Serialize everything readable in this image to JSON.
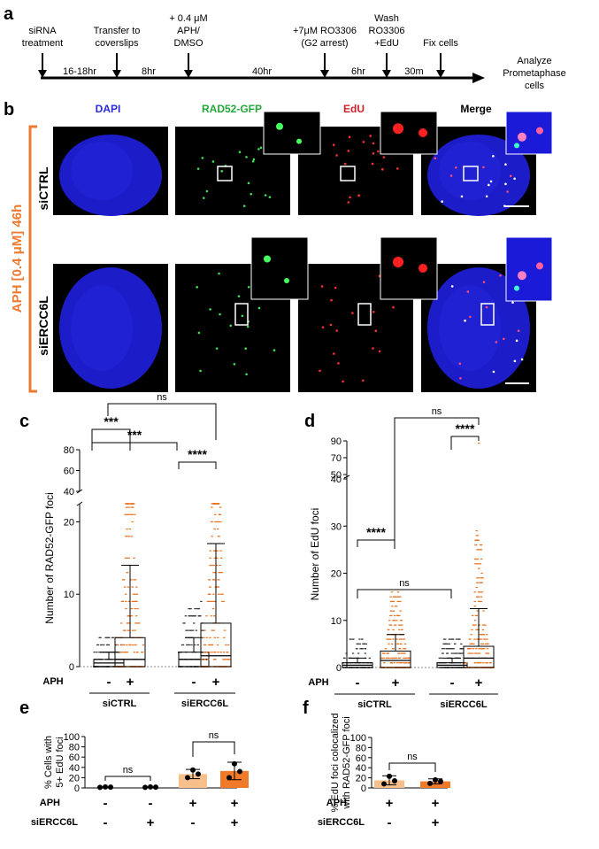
{
  "panel_labels": {
    "a": "a",
    "b": "b",
    "c": "c",
    "d": "d",
    "e": "e",
    "f": "f"
  },
  "timeline": {
    "events": [
      {
        "id": "siRNA",
        "lines": [
          "siRNA",
          "treatment"
        ]
      },
      {
        "id": "transfer",
        "lines": [
          "Transfer to",
          "coverslips"
        ]
      },
      {
        "id": "aph",
        "lines": [
          "+ 0.4 μM",
          "APH/",
          "DMSO"
        ]
      },
      {
        "id": "ro",
        "lines": [
          "+7μM RO3306",
          "(G2 arrest)"
        ]
      },
      {
        "id": "wash",
        "lines": [
          "Wash",
          "RO3306",
          "+EdU"
        ]
      },
      {
        "id": "fix",
        "lines": [
          "Fix cells"
        ]
      },
      {
        "id": "analyze",
        "lines": [
          "Analyze",
          "Prometaphase",
          "cells"
        ]
      }
    ],
    "intervals": [
      "16-18hr",
      "8hr",
      "40hr",
      "6hr",
      "30m"
    ]
  },
  "microscopy": {
    "channels": [
      {
        "name": "DAPI",
        "color": "#2a2ad8"
      },
      {
        "name": "RAD52-GFP",
        "color": "#22a83a"
      },
      {
        "name": "EdU",
        "color": "#d21e2b"
      },
      {
        "name": "Merge",
        "color": "#000000"
      }
    ],
    "side_label": "APH [0.4 μM] 46h",
    "side_color": "#ec7a30",
    "rows": [
      "siCTRL",
      "siERCC6L"
    ]
  },
  "chart_data": [
    {
      "panel": "c",
      "type": "scatter",
      "ylabel": "Number of RAD52-GFP foci",
      "y_ticks_lower": [
        0,
        10,
        20
      ],
      "y_ticks_upper": [
        40,
        60,
        80
      ],
      "groups": [
        {
          "aph": "-",
          "median": 0.5,
          "q3": 1,
          "whisker": 2
        },
        {
          "aph": "+",
          "median": 1,
          "q3": 4,
          "whisker": 14
        },
        {
          "aph": "-",
          "median": 1,
          "q3": 2,
          "whisker": 4
        },
        {
          "aph": "+",
          "median": 1.5,
          "q3": 6,
          "whisker": 17
        }
      ],
      "x_group_labels": [
        "siCTRL",
        "siERCC6L"
      ],
      "row_label": "APH",
      "significance": [
        "***",
        "***",
        "****",
        "ns"
      ]
    },
    {
      "panel": "d",
      "type": "scatter",
      "ylabel": "Number of EdU foci",
      "y_ticks_lower": [
        0,
        10,
        20,
        30,
        40
      ],
      "y_ticks_upper": [
        50,
        70,
        90
      ],
      "groups": [
        {
          "aph": "-",
          "median": 0.5,
          "q3": 1,
          "whisker": 2
        },
        {
          "aph": "+",
          "median": 1.5,
          "q3": 3.5,
          "whisker": 7
        },
        {
          "aph": "-",
          "median": 0.5,
          "q3": 1,
          "whisker": 2
        },
        {
          "aph": "+",
          "median": 2,
          "q3": 4.5,
          "whisker": 12.5
        }
      ],
      "x_group_labels": [
        "siCTRL",
        "siERCC6L"
      ],
      "row_label": "APH",
      "significance": [
        "****",
        "ns",
        "****",
        "ns"
      ]
    },
    {
      "panel": "e",
      "type": "bar",
      "ylabel": [
        "% Cells with",
        "5+ EdU foci"
      ],
      "ylim": [
        0,
        100
      ],
      "y_ticks": [
        0,
        20,
        40,
        60,
        80,
        100
      ],
      "bars": [
        {
          "aph": "-",
          "si": "-",
          "value": 1.5,
          "err": 0.5,
          "points": [
            1,
            2,
            1.5
          ]
        },
        {
          "aph": "-",
          "si": "+",
          "value": 1.5,
          "err": 0.5,
          "points": [
            1,
            2,
            1.5
          ]
        },
        {
          "aph": "+",
          "si": "-",
          "value": 27,
          "err": 9,
          "points": [
            20,
            35,
            27
          ]
        },
        {
          "aph": "+",
          "si": "+",
          "value": 33,
          "err": 17,
          "points": [
            20,
            47,
            32
          ]
        }
      ],
      "row_labels": [
        "APH",
        "siERCC6L"
      ],
      "significance": [
        "ns",
        "ns"
      ],
      "colors": [
        "#f7c08a",
        "#f07a2a"
      ]
    },
    {
      "panel": "f",
      "type": "bar",
      "ylabel": [
        "% EdU foci colocalized",
        "with RAD52-GFP foci"
      ],
      "ylim": [
        0,
        100
      ],
      "y_ticks": [
        0,
        20,
        40,
        60,
        80,
        100
      ],
      "bars": [
        {
          "aph": "+",
          "si": "-",
          "value": 15,
          "err": 9,
          "points": [
            8,
            23,
            14
          ]
        },
        {
          "aph": "+",
          "si": "+",
          "value": 13,
          "err": 5,
          "points": [
            9,
            16,
            13
          ]
        }
      ],
      "row_labels": [
        "APH",
        "siERCC6L"
      ],
      "significance": [
        "ns"
      ],
      "colors": [
        "#f7c08a",
        "#f07a2a"
      ]
    }
  ]
}
